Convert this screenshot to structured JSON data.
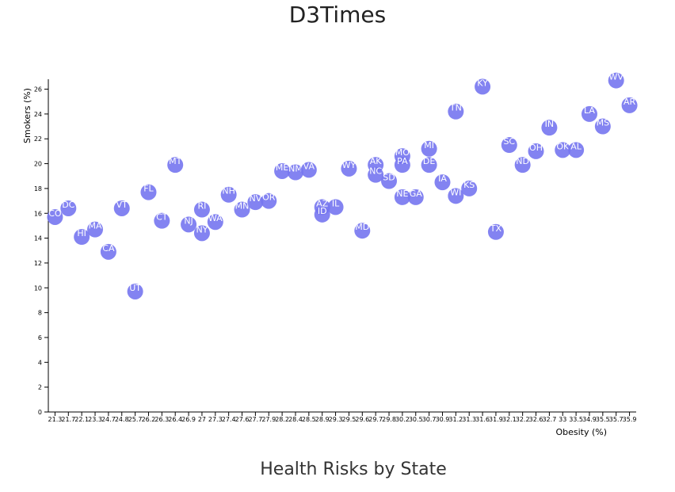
{
  "page": {
    "title": "D3Times",
    "caption": "Health Risks by State"
  },
  "chart_data": {
    "type": "scatter",
    "xlabel": "Obesity (%)",
    "ylabel": "Smokers (%)",
    "x_ticks": [
      "21.3",
      "21.7",
      "22.1",
      "23.3",
      "24.7",
      "24.8",
      "25.7",
      "26.2",
      "26.3",
      "26.4",
      "26.9",
      "27",
      "27.3",
      "27.4",
      "27.6",
      "27.7",
      "27.9",
      "28.2",
      "28.4",
      "28.5",
      "28.9",
      "29.3",
      "29.5",
      "29.6",
      "29.7",
      "29.8",
      "30.2",
      "30.5",
      "30.7",
      "30.9",
      "31.2",
      "31.3",
      "31.6",
      "31.9",
      "32.1",
      "32.2",
      "32.6",
      "32.7",
      "33",
      "33.5",
      "34.9",
      "35.5",
      "35.7",
      "35.9"
    ],
    "y_ticks": [
      0,
      2,
      4,
      6,
      8,
      10,
      12,
      14,
      16,
      18,
      20,
      22,
      24,
      26
    ],
    "ylim": [
      0,
      26.8
    ],
    "grid": false,
    "marker_color": "#7676f0",
    "points": [
      {
        "state": "CO",
        "x": "21.3",
        "y": 15.7
      },
      {
        "state": "DC",
        "x": "21.7",
        "y": 16.4
      },
      {
        "state": "HI",
        "x": "22.1",
        "y": 14.1
      },
      {
        "state": "MA",
        "x": "23.3",
        "y": 14.7
      },
      {
        "state": "CA",
        "x": "24.7",
        "y": 12.9
      },
      {
        "state": "VT",
        "x": "24.8",
        "y": 16.4
      },
      {
        "state": "UT",
        "x": "25.7",
        "y": 9.7
      },
      {
        "state": "FL",
        "x": "26.2",
        "y": 17.7
      },
      {
        "state": "CT",
        "x": "26.3",
        "y": 15.4
      },
      {
        "state": "MT",
        "x": "26.4",
        "y": 19.9
      },
      {
        "state": "NJ",
        "x": "26.9",
        "y": 15.1
      },
      {
        "state": "RI",
        "x": "27",
        "y": 16.3
      },
      {
        "state": "NY",
        "x": "27",
        "y": 14.4
      },
      {
        "state": "WA",
        "x": "27.3",
        "y": 15.3
      },
      {
        "state": "NH",
        "x": "27.4",
        "y": 17.5
      },
      {
        "state": "MN",
        "x": "27.6",
        "y": 16.3
      },
      {
        "state": "NV",
        "x": "27.7",
        "y": 16.9
      },
      {
        "state": "OR",
        "x": "27.9",
        "y": 17.0
      },
      {
        "state": "ME",
        "x": "28.2",
        "y": 19.4
      },
      {
        "state": "NM",
        "x": "28.4",
        "y": 19.3
      },
      {
        "state": "VA",
        "x": "28.5",
        "y": 19.5
      },
      {
        "state": "AZ",
        "x": "28.9",
        "y": 16.5
      },
      {
        "state": "ID",
        "x": "28.9",
        "y": 15.9
      },
      {
        "state": "IL",
        "x": "29.3",
        "y": 16.5
      },
      {
        "state": "WY",
        "x": "29.5",
        "y": 19.6
      },
      {
        "state": "MD",
        "x": "29.6",
        "y": 14.6
      },
      {
        "state": "AK",
        "x": "29.7",
        "y": 19.9
      },
      {
        "state": "NC",
        "x": "29.7",
        "y": 19.1
      },
      {
        "state": "SD",
        "x": "29.8",
        "y": 18.6
      },
      {
        "state": "MO",
        "x": "30.2",
        "y": 20.6
      },
      {
        "state": "PA",
        "x": "30.2",
        "y": 19.9
      },
      {
        "state": "NE",
        "x": "30.2",
        "y": 17.3
      },
      {
        "state": "GA",
        "x": "30.5",
        "y": 17.3
      },
      {
        "state": "MI",
        "x": "30.7",
        "y": 21.2
      },
      {
        "state": "DE",
        "x": "30.7",
        "y": 19.9
      },
      {
        "state": "IA",
        "x": "30.9",
        "y": 18.5
      },
      {
        "state": "TN",
        "x": "31.2",
        "y": 24.2
      },
      {
        "state": "WI",
        "x": "31.2",
        "y": 17.4
      },
      {
        "state": "KS",
        "x": "31.3",
        "y": 18.0
      },
      {
        "state": "KY",
        "x": "31.6",
        "y": 26.2
      },
      {
        "state": "TX",
        "x": "31.9",
        "y": 14.5
      },
      {
        "state": "SC",
        "x": "32.1",
        "y": 21.5
      },
      {
        "state": "ND",
        "x": "32.2",
        "y": 19.9
      },
      {
        "state": "OH",
        "x": "32.6",
        "y": 21.0
      },
      {
        "state": "IN",
        "x": "32.7",
        "y": 22.9
      },
      {
        "state": "OK",
        "x": "33",
        "y": 21.1
      },
      {
        "state": "AL",
        "x": "33.5",
        "y": 21.1
      },
      {
        "state": "LA",
        "x": "34.9",
        "y": 24.0
      },
      {
        "state": "MS",
        "x": "35.5",
        "y": 23.0
      },
      {
        "state": "WV",
        "x": "35.7",
        "y": 26.7
      },
      {
        "state": "AR",
        "x": "35.9",
        "y": 24.7
      }
    ]
  }
}
